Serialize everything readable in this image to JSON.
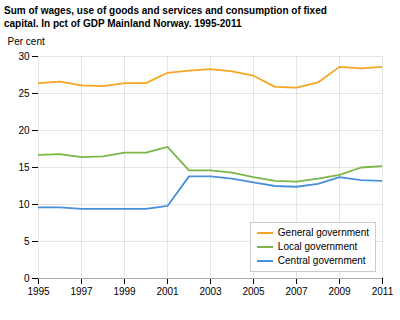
{
  "chart_data": {
    "type": "line",
    "title": "Sum of wages, use of goods and services and consumption of fixed",
    "subtitle": "capital. In pct of GDP Mainland Norway. 1995-2011",
    "y_label": "Per cent",
    "x": [
      1995,
      1996,
      1997,
      1998,
      1999,
      2000,
      2001,
      2002,
      2003,
      2004,
      2005,
      2006,
      2007,
      2008,
      2009,
      2010,
      2011
    ],
    "series": [
      {
        "name": "General government",
        "color": "#f5a623",
        "values": [
          26.4,
          26.6,
          26.1,
          26.0,
          26.4,
          26.4,
          27.8,
          28.1,
          28.3,
          28.0,
          27.4,
          25.9,
          25.8,
          26.5,
          28.6,
          28.4,
          28.6
        ]
      },
      {
        "name": "Local government",
        "color": "#7ab648",
        "values": [
          16.7,
          16.8,
          16.4,
          16.5,
          17.0,
          17.0,
          17.8,
          14.6,
          14.6,
          14.3,
          13.7,
          13.2,
          13.1,
          13.5,
          14.0,
          15.0,
          15.2
        ]
      },
      {
        "name": "Central government",
        "color": "#4a90d9",
        "values": [
          9.6,
          9.6,
          9.4,
          9.4,
          9.4,
          9.4,
          9.8,
          13.8,
          13.8,
          13.5,
          13.0,
          12.5,
          12.4,
          12.8,
          13.7,
          13.3,
          13.2
        ]
      }
    ],
    "xlim": [
      1995,
      2011
    ],
    "xticks": [
      1995,
      1997,
      1999,
      2001,
      2003,
      2005,
      2007,
      2009,
      2011
    ],
    "ylim": [
      0,
      30
    ],
    "yticks": [
      0,
      5,
      10,
      15,
      20,
      25,
      30
    ],
    "grid": true,
    "legend": "lower right"
  }
}
